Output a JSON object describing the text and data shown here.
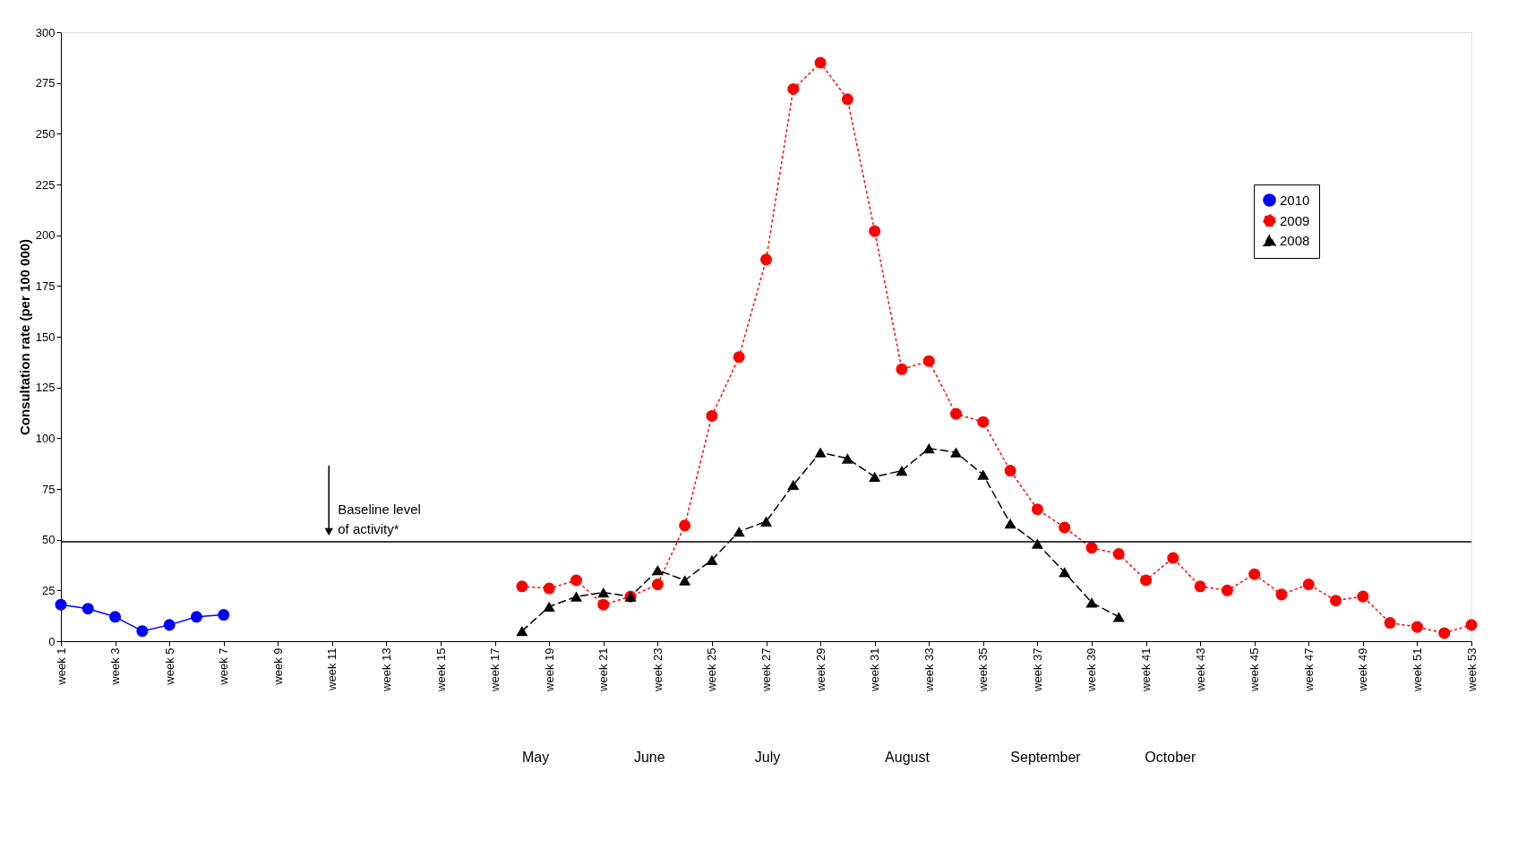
{
  "chart_data": {
    "type": "line",
    "ylabel": "Consultation rate (per 100 000)",
    "categories": [
      "week 1",
      null,
      "week 3",
      null,
      "week 5",
      null,
      "week 7",
      null,
      "week 9",
      null,
      "week 11",
      null,
      "week 13",
      null,
      "week 15",
      null,
      "week 17",
      null,
      "week 19",
      null,
      "week 21",
      null,
      "week 23",
      null,
      "week 25",
      null,
      "week 27",
      null,
      "week 29",
      null,
      "week 31",
      null,
      "week 33",
      null,
      "week 35",
      null,
      "week 37",
      null,
      "week 39",
      null,
      "week 41",
      null,
      "week 43",
      null,
      "week 45",
      null,
      "week 47",
      null,
      "week 49",
      null,
      "week 51",
      null,
      "week 53"
    ],
    "ylim": [
      0,
      300
    ],
    "yticks": [
      0,
      25,
      50,
      75,
      100,
      125,
      150,
      175,
      200,
      225,
      250,
      275,
      300
    ],
    "series": [
      {
        "name": "2010",
        "color": "#0000ff",
        "marker": "circle",
        "line_style": "solid",
        "values": [
          18,
          16,
          12,
          5,
          8,
          12,
          13,
          null,
          null,
          null,
          null,
          null,
          null,
          null,
          null,
          null,
          null,
          null,
          null,
          null,
          null,
          null,
          null,
          null,
          null,
          null,
          null,
          null,
          null,
          null,
          null,
          null,
          null,
          null,
          null,
          null,
          null,
          null,
          null,
          null,
          null,
          null,
          null,
          null,
          null,
          null,
          null,
          null,
          null,
          null,
          null,
          null,
          null
        ]
      },
      {
        "name": "2009",
        "color": "#ff0000",
        "marker": "circle",
        "line_style": "dotted",
        "values": [
          null,
          null,
          null,
          null,
          null,
          null,
          null,
          null,
          null,
          null,
          null,
          null,
          null,
          null,
          null,
          null,
          null,
          27,
          26,
          30,
          18,
          22,
          28,
          57,
          111,
          140,
          188,
          272,
          285,
          267,
          202,
          134,
          138,
          112,
          108,
          84,
          65,
          56,
          46,
          43,
          30,
          41,
          27,
          25,
          33,
          23,
          28,
          20,
          22,
          9,
          7,
          4,
          8
        ]
      },
      {
        "name": "2008",
        "color": "#000000",
        "marker": "triangle",
        "line_style": "dashed",
        "values": [
          null,
          null,
          null,
          null,
          null,
          null,
          null,
          null,
          null,
          null,
          null,
          null,
          null,
          null,
          null,
          null,
          null,
          5,
          17,
          22,
          24,
          22,
          35,
          30,
          40,
          54,
          59,
          77,
          93,
          90,
          81,
          84,
          95,
          93,
          82,
          58,
          48,
          34,
          19,
          12,
          null,
          null,
          null,
          null,
          null,
          null,
          null,
          null,
          null,
          null,
          null,
          null,
          null
        ]
      }
    ],
    "ref_lines": [
      {
        "axis": "y",
        "value": 49,
        "label": "Baseline level\nof activity*",
        "color": "#000000"
      }
    ],
    "annotations": [
      "May",
      "June",
      "July",
      "August",
      "September",
      "October"
    ],
    "legend": "top right",
    "grid": false
  }
}
